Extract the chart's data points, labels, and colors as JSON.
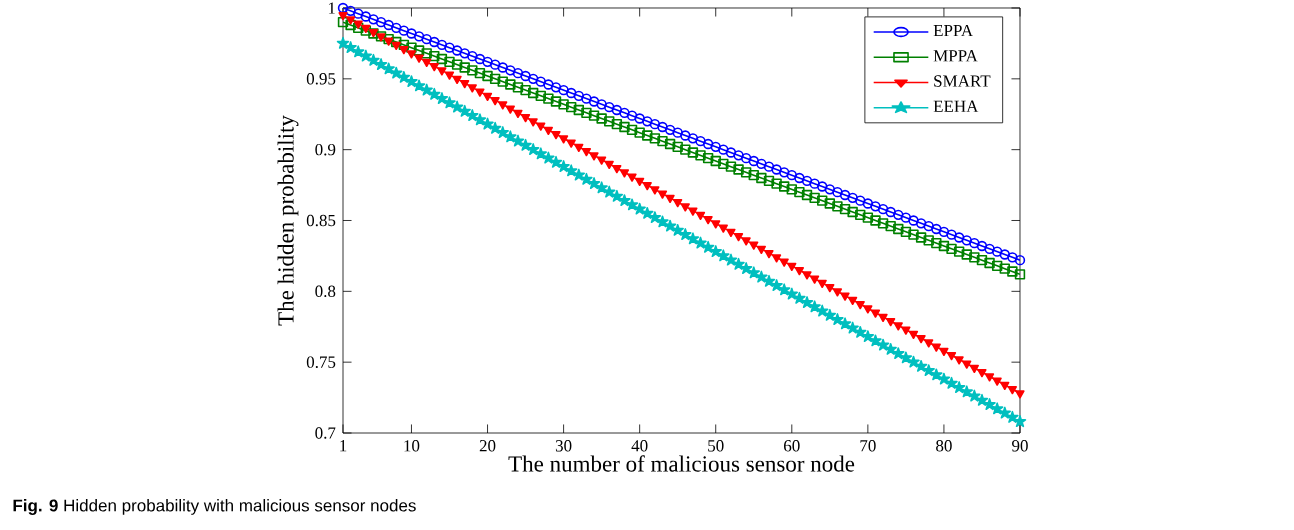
{
  "chart_data": {
    "type": "line",
    "xlabel": "The number of malicious sensor node",
    "ylabel": "The hidden probability",
    "annotations": [
      "**Fig. 9** Hidden probability with malicious sensor nodes"
    ],
    "x": [
      1,
      2,
      3,
      4,
      5,
      6,
      7,
      8,
      9,
      10,
      11,
      12,
      13,
      14,
      15,
      16,
      17,
      18,
      19,
      20,
      21,
      22,
      23,
      24,
      25,
      26,
      27,
      28,
      29,
      30,
      31,
      32,
      33,
      34,
      35,
      36,
      37,
      38,
      39,
      40,
      41,
      42,
      43,
      44,
      45,
      46,
      47,
      48,
      49,
      50,
      51,
      52,
      53,
      54,
      55,
      56,
      57,
      58,
      59,
      60,
      61,
      62,
      63,
      64,
      65,
      66,
      67,
      68,
      69,
      70,
      71,
      72,
      73,
      74,
      75,
      76,
      77,
      78,
      79,
      80,
      81,
      82,
      83,
      84,
      85,
      86,
      87,
      88,
      89,
      90
    ],
    "xlim": [
      1,
      90
    ],
    "xticks": [
      1,
      10,
      20,
      30,
      40,
      50,
      60,
      70,
      80,
      90
    ],
    "ylim": [
      0.7,
      1
    ],
    "yticks": [
      0.7,
      0.75,
      0.8,
      0.85,
      0.9,
      0.95,
      1
    ],
    "legend": "top right",
    "series": [
      {
        "name": "EPPA",
        "color": "#0000ff",
        "marker": "circle",
        "values": [
          1,
          0.998,
          0.996,
          0.994,
          0.992,
          0.99,
          0.988,
          0.986,
          0.984,
          0.982,
          0.98,
          0.978,
          0.976,
          0.974,
          0.972,
          0.97,
          0.968,
          0.966,
          0.964,
          0.962,
          0.96,
          0.958,
          0.956,
          0.954,
          0.952,
          0.95,
          0.948,
          0.946,
          0.944,
          0.942,
          0.94,
          0.938,
          0.936,
          0.934,
          0.932,
          0.93,
          0.928,
          0.926,
          0.924,
          0.922,
          0.92,
          0.918,
          0.916,
          0.914,
          0.912,
          0.91,
          0.908,
          0.906,
          0.904,
          0.902,
          0.9,
          0.898,
          0.896,
          0.894,
          0.892,
          0.89,
          0.888,
          0.886,
          0.884,
          0.882,
          0.88,
          0.878,
          0.876,
          0.874,
          0.872,
          0.87,
          0.868,
          0.866,
          0.864,
          0.862,
          0.86,
          0.858,
          0.856,
          0.854,
          0.852,
          0.85,
          0.848,
          0.846,
          0.844,
          0.842,
          0.84,
          0.838,
          0.836,
          0.834,
          0.832,
          0.83,
          0.828,
          0.826,
          0.824,
          0.822
        ]
      },
      {
        "name": "MPPA",
        "color": "#008000",
        "marker": "square",
        "values": [
          0.99,
          0.988,
          0.986,
          0.984,
          0.982,
          0.98,
          0.978,
          0.976,
          0.974,
          0.972,
          0.97,
          0.968,
          0.966,
          0.964,
          0.962,
          0.96,
          0.958,
          0.956,
          0.954,
          0.952,
          0.95,
          0.948,
          0.946,
          0.944,
          0.942,
          0.94,
          0.938,
          0.936,
          0.934,
          0.932,
          0.93,
          0.928,
          0.926,
          0.924,
          0.922,
          0.92,
          0.918,
          0.916,
          0.914,
          0.912,
          0.91,
          0.908,
          0.906,
          0.904,
          0.902,
          0.9,
          0.898,
          0.896,
          0.894,
          0.892,
          0.89,
          0.888,
          0.886,
          0.884,
          0.882,
          0.88,
          0.878,
          0.876,
          0.874,
          0.872,
          0.87,
          0.868,
          0.866,
          0.864,
          0.862,
          0.86,
          0.858,
          0.856,
          0.854,
          0.852,
          0.85,
          0.848,
          0.846,
          0.844,
          0.842,
          0.84,
          0.838,
          0.836,
          0.834,
          0.832,
          0.83,
          0.828,
          0.826,
          0.824,
          0.822,
          0.82,
          0.818,
          0.816,
          0.814,
          0.812
        ]
      },
      {
        "name": "SMART",
        "color": "#ff0000",
        "marker": "triangle",
        "values": [
          0.995,
          0.992,
          0.989,
          0.986,
          0.983,
          0.98,
          0.977,
          0.974,
          0.971,
          0.968,
          0.965,
          0.962,
          0.959,
          0.956,
          0.953,
          0.95,
          0.947,
          0.944,
          0.941,
          0.938,
          0.935,
          0.932,
          0.929,
          0.926,
          0.923,
          0.92,
          0.917,
          0.914,
          0.911,
          0.908,
          0.905,
          0.902,
          0.899,
          0.896,
          0.893,
          0.89,
          0.887,
          0.884,
          0.881,
          0.878,
          0.875,
          0.872,
          0.869,
          0.866,
          0.863,
          0.86,
          0.857,
          0.854,
          0.851,
          0.848,
          0.845,
          0.842,
          0.839,
          0.836,
          0.833,
          0.83,
          0.827,
          0.824,
          0.821,
          0.818,
          0.815,
          0.812,
          0.809,
          0.806,
          0.803,
          0.8,
          0.797,
          0.794,
          0.791,
          0.788,
          0.785,
          0.782,
          0.779,
          0.776,
          0.773,
          0.77,
          0.767,
          0.764,
          0.761,
          0.758,
          0.755,
          0.752,
          0.749,
          0.746,
          0.743,
          0.74,
          0.737,
          0.734,
          0.731,
          0.728
        ]
      },
      {
        "name": "EEHA",
        "color": "#00bfbf",
        "marker": "star",
        "values": [
          0.975,
          0.972,
          0.969,
          0.966,
          0.963,
          0.96,
          0.957,
          0.954,
          0.951,
          0.948,
          0.945,
          0.942,
          0.939,
          0.936,
          0.933,
          0.93,
          0.927,
          0.924,
          0.921,
          0.918,
          0.915,
          0.912,
          0.909,
          0.906,
          0.903,
          0.9,
          0.897,
          0.894,
          0.891,
          0.888,
          0.885,
          0.882,
          0.879,
          0.876,
          0.873,
          0.87,
          0.867,
          0.864,
          0.861,
          0.858,
          0.855,
          0.852,
          0.849,
          0.846,
          0.843,
          0.84,
          0.837,
          0.834,
          0.831,
          0.828,
          0.825,
          0.822,
          0.819,
          0.816,
          0.813,
          0.81,
          0.807,
          0.804,
          0.801,
          0.798,
          0.795,
          0.792,
          0.789,
          0.786,
          0.783,
          0.78,
          0.777,
          0.774,
          0.771,
          0.768,
          0.765,
          0.762,
          0.759,
          0.756,
          0.753,
          0.75,
          0.747,
          0.744,
          0.741,
          0.738,
          0.735,
          0.732,
          0.729,
          0.726,
          0.723,
          0.72,
          0.717,
          0.714,
          0.711,
          0.708
        ]
      }
    ]
  }
}
